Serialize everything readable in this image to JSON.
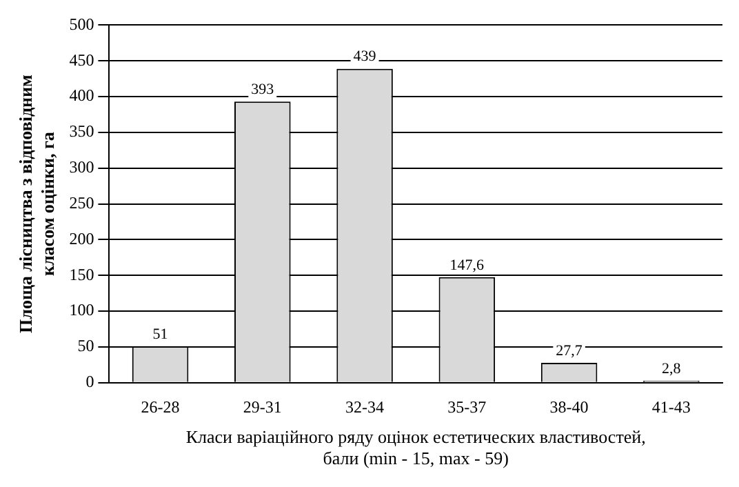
{
  "chart_data": {
    "type": "bar",
    "xlabel": "Класи варіаційного ряду оцінок естетических властивостей,\nбали (min - 15, max - 59)",
    "ylabel": "Площа лісництва з відповідним\nкласом оцінки, га",
    "categories": [
      "26-28",
      "29-31",
      "32-34",
      "35-37",
      "38-40",
      "41-43"
    ],
    "values": [
      51,
      393,
      439,
      147.6,
      27.7,
      2.8
    ],
    "value_labels": [
      "51",
      "393",
      "439",
      "147,6",
      "27,7",
      "2,8"
    ],
    "color": "#d9d9d9",
    "ylim": [
      0,
      500
    ],
    "yticks": [
      0,
      50,
      100,
      150,
      200,
      250,
      300,
      350,
      400,
      450,
      500
    ],
    "grid": "y"
  }
}
